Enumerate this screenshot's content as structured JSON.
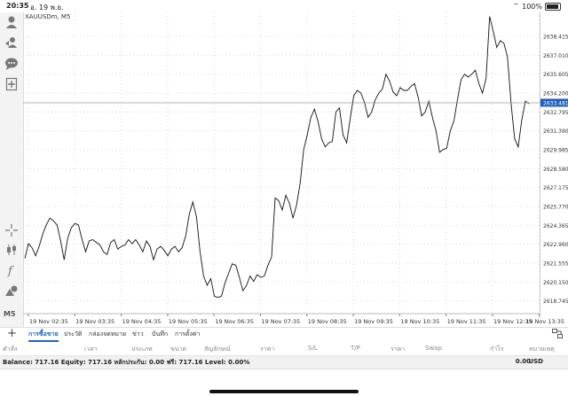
{
  "status": {
    "time": "20:35",
    "date": "อ. 19 พ.ย.",
    "battery": "100%"
  },
  "chart": {
    "symbol": "XAUUSDm, M5",
    "current_price": "2633.481"
  },
  "sidebar": {
    "timeframe": "M5",
    "icons": [
      "user-icon",
      "user-swap-icon",
      "chat-icon",
      "add-document-icon",
      "crosshair-icon",
      "candlestick-icon",
      "indicator-f-icon",
      "objects-icon"
    ]
  },
  "chart_data": {
    "type": "line",
    "x_ticks": [
      "19 Nov 02:35",
      "19 Nov 03:35",
      "19 Nov 04:35",
      "19 Nov 05:35",
      "19 Nov 06:35",
      "19 Nov 07:35",
      "19 Nov 08:35",
      "19 Nov 09:35",
      "19 Nov 10:35",
      "19 Nov 11:35",
      "19 Nov 12:35",
      "19 Nov 13:35"
    ],
    "y_ticks": [
      "2638.415",
      "2637.010",
      "2635.605",
      "2634.200",
      "2632.795",
      "2631.390",
      "2629.985",
      "2628.580",
      "2627.175",
      "2625.770",
      "2624.365",
      "2622.960",
      "2621.555",
      "2620.150",
      "2618.745"
    ],
    "ylim": [
      2617.8,
      2640.2
    ],
    "values": [
      2621.9,
      2623.0,
      2622.7,
      2622.1,
      2622.8,
      2623.7,
      2624.4,
      2624.9,
      2624.7,
      2624.4,
      2623.2,
      2621.8,
      2623.4,
      2624.2,
      2624.5,
      2624.4,
      2623.3,
      2622.4,
      2623.2,
      2623.3,
      2623.1,
      2622.9,
      2622.4,
      2622.2,
      2623.1,
      2623.3,
      2622.6,
      2622.8,
      2622.9,
      2623.3,
      2623.0,
      2623.3,
      2622.9,
      2622.4,
      2623.2,
      2622.8,
      2621.8,
      2622.6,
      2622.8,
      2622.5,
      2622.1,
      2622.6,
      2622.8,
      2622.4,
      2622.7,
      2623.6,
      2625.2,
      2626.1,
      2625.0,
      2622.4,
      2620.6,
      2619.9,
      2620.4,
      2619.1,
      2619.0,
      2619.1,
      2620.1,
      2620.8,
      2621.5,
      2621.4,
      2620.5,
      2619.5,
      2619.9,
      2620.6,
      2620.2,
      2620.7,
      2620.5,
      2620.6,
      2621.4,
      2622.0,
      2626.4,
      2626.2,
      2625.5,
      2626.6,
      2626.0,
      2624.9,
      2625.9,
      2627.5,
      2630.0,
      2631.1,
      2632.4,
      2633.0,
      2632.1,
      2630.8,
      2630.2,
      2630.5,
      2630.6,
      2632.8,
      2633.1,
      2631.1,
      2630.5,
      2632.3,
      2634.0,
      2634.4,
      2634.2,
      2633.5,
      2632.4,
      2632.8,
      2633.7,
      2634.2,
      2634.5,
      2635.6,
      2635.1,
      2634.3,
      2634.0,
      2634.6,
      2634.4,
      2634.4,
      2634.7,
      2634.9,
      2633.9,
      2632.5,
      2632.8,
      2633.6,
      2632.4,
      2631.4,
      2629.8,
      2630.0,
      2630.1,
      2631.4,
      2632.1,
      2633.7,
      2635.2,
      2635.6,
      2635.4,
      2635.6,
      2635.9,
      2634.9,
      2634.2,
      2635.3,
      2639.9,
      2638.8,
      2637.6,
      2638.1,
      2637.9,
      2636.9,
      2633.4,
      2630.8,
      2630.2,
      2632.2,
      2633.6,
      2633.4
    ]
  },
  "tabs": [
    "การซื้อขาย",
    "ประวัติ",
    "กล่องจดหมาย",
    "ข่าว",
    "บันทึก",
    "การตั้งค่า"
  ],
  "columns": [
    "คำสั่ง",
    "เวลา",
    "ประเภท",
    "ขนาด",
    "สัญลักษณ์",
    "ราคา",
    "S/L",
    "T/P",
    "ราคา",
    "Swap",
    "กำไร",
    "หมายเหตุ"
  ],
  "balance": {
    "text": "Balance: 717.16 Equity: 717.16 หลักประกัน: 0.00 ฟรี: 717.16 Level: 0.00%",
    "profit": "0.00",
    "currency": "USD"
  }
}
